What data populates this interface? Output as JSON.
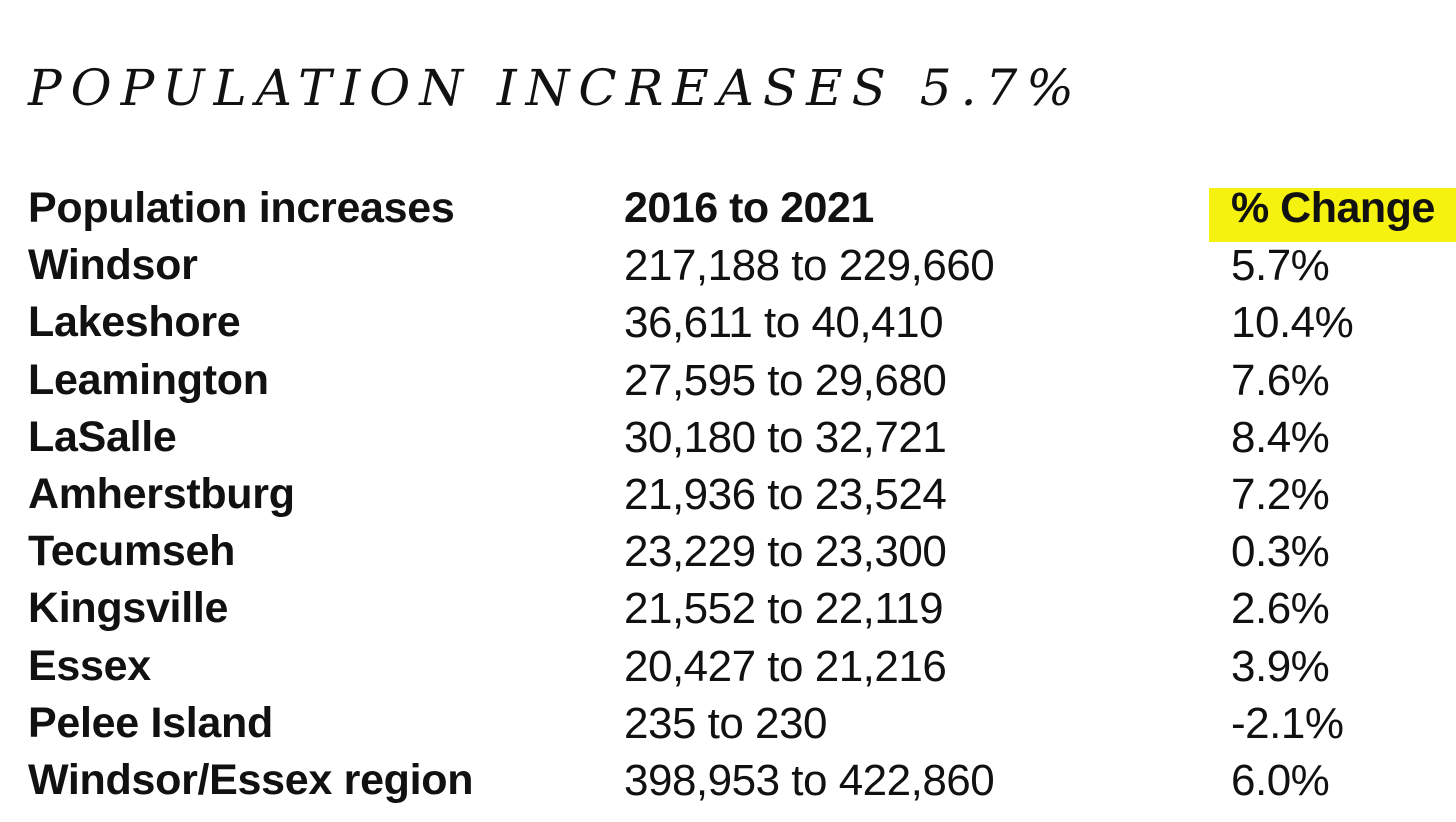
{
  "headline": "POPULATION INCREASES 5.7%",
  "table": {
    "headers": {
      "name": "Population increases",
      "range": "2016 to 2021",
      "change": "% Change"
    },
    "highlight_color": "#f5f20f",
    "rows": [
      {
        "name": "Windsor",
        "range": "217,188 to 229,660",
        "change": "5.7%"
      },
      {
        "name": "Lakeshore",
        "range": "36,611 to 40,410",
        "change": "10.4%"
      },
      {
        "name": "Leamington",
        "range": "27,595 to 29,680",
        "change": "7.6%"
      },
      {
        "name": "LaSalle",
        "range": "30,180 to 32,721",
        "change": "8.4%"
      },
      {
        "name": "Amherstburg",
        "range": "21,936 to 23,524",
        "change": "7.2%"
      },
      {
        "name": "Tecumseh",
        "range": "23,229 to 23,300",
        "change": "0.3%"
      },
      {
        "name": "Kingsville",
        "range": "21,552 to 22,119",
        "change": "2.6%"
      },
      {
        "name": "Essex",
        "range": "20,427 to 21,216",
        "change": "3.9%"
      },
      {
        "name": "Pelee Island",
        "range": "235 to 230",
        "change": "-2.1%"
      },
      {
        "name": "Windsor/Essex region",
        "range": "398,953 to 422,860",
        "change": "6.0%"
      }
    ]
  }
}
